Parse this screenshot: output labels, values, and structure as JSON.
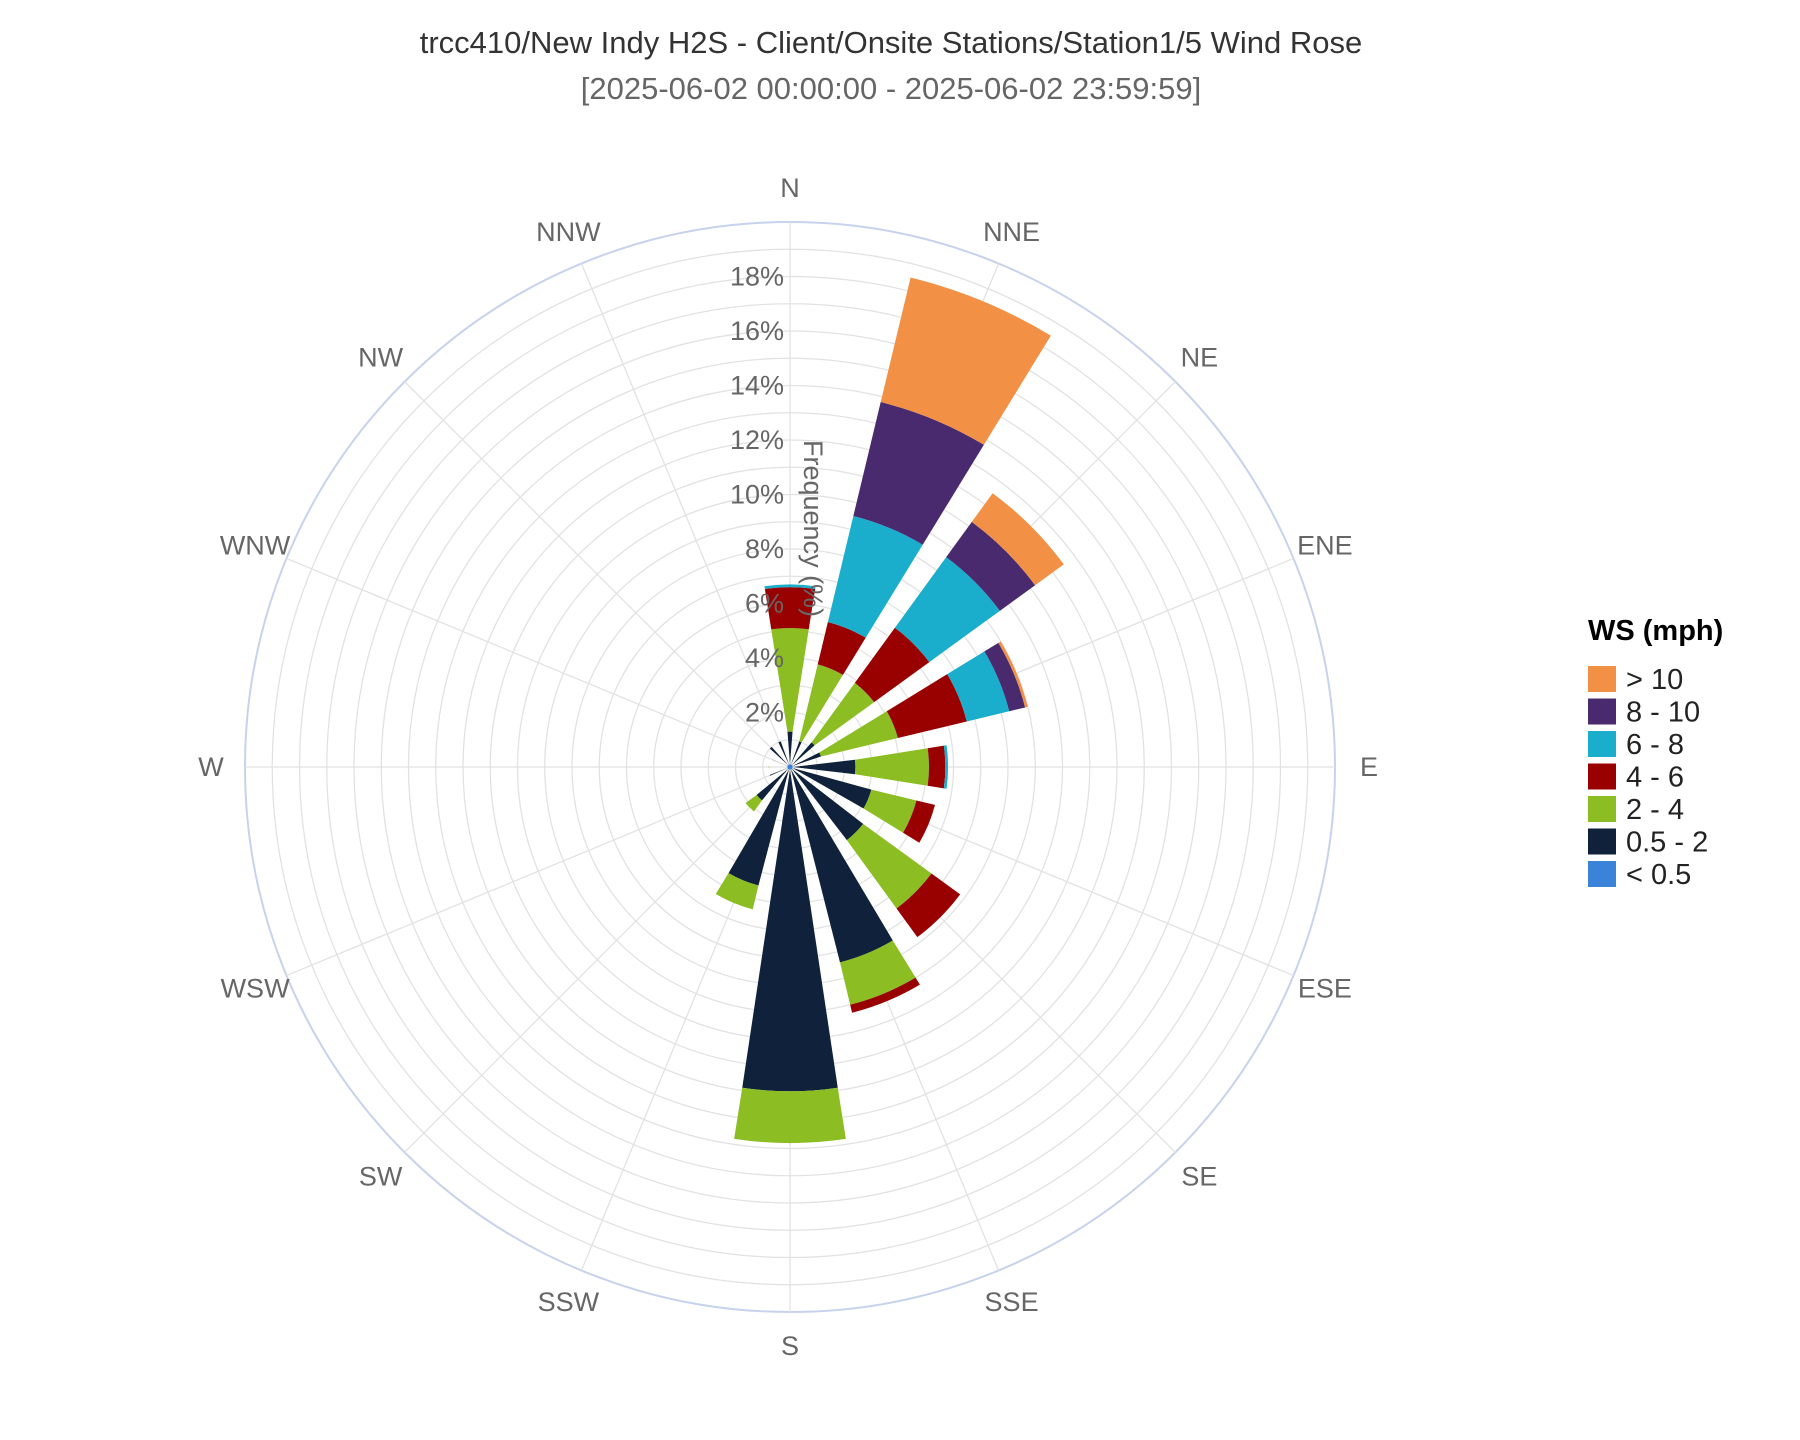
{
  "title": "trcc410/New Indy H2S - Client/Onsite Stations/Station1/5 Wind Rose",
  "subtitle": "[2025-06-02 00:00:00 - 2025-06-02 23:59:59]",
  "chart_data": {
    "type": "wind-rose (stacked polar bar)",
    "radial_axis": {
      "label": "Frequency (%)",
      "range": [
        0,
        20
      ],
      "ticks": [
        2,
        4,
        6,
        8,
        10,
        12,
        14,
        16,
        18
      ],
      "tick_labels": [
        "2%",
        "4%",
        "6%",
        "8%",
        "10%",
        "12%",
        "14%",
        "16%",
        "18%"
      ]
    },
    "directions": [
      "N",
      "NNE",
      "NE",
      "ENE",
      "E",
      "ESE",
      "SE",
      "SSE",
      "S",
      "SSW",
      "SW",
      "WSW",
      "W",
      "WNW",
      "NW",
      "NNW"
    ],
    "legend": {
      "title": "WS (mph)",
      "position": "right",
      "items": [
        "> 10",
        "8 - 10",
        "6 - 8",
        "4 - 6",
        "2 - 4",
        "0.5 - 2",
        "< 0.5"
      ]
    },
    "colors": {
      "< 0.5": "#3b82d9",
      "0.5 - 2": "#10223b",
      "2 - 4": "#8cbd22",
      "4 - 6": "#990000",
      "6 - 8": "#1baecc",
      "8 - 10": "#4a2a6e",
      "> 10": "#f29145"
    },
    "series": [
      {
        "name": "< 0.5",
        "values": [
          0.1,
          0.1,
          0.1,
          0.1,
          0.1,
          0.1,
          0.1,
          0.1,
          0.1,
          0.1,
          0.1,
          0.1,
          0.1,
          0.1,
          0.1,
          0.1
        ]
      },
      {
        "name": "0.5 - 2",
        "values": [
          1.2,
          0.9,
          1.1,
          1.1,
          2.3,
          3.0,
          3.3,
          7.3,
          11.8,
          4.4,
          1.5,
          0.7,
          0.6,
          0.6,
          0.9,
          0.9
        ]
      },
      {
        "name": "2 - 4",
        "values": [
          3.8,
          2.9,
          2.7,
          2.9,
          2.7,
          1.7,
          3.1,
          1.6,
          1.9,
          0.9,
          0.5,
          0.0,
          0.1,
          0.0,
          0.0,
          0.0
        ]
      },
      {
        "name": "4 - 6",
        "values": [
          1.5,
          1.6,
          2.5,
          2.6,
          0.6,
          0.7,
          1.3,
          0.3,
          0.0,
          0.0,
          0.0,
          0.0,
          0.0,
          0.0,
          0.0,
          0.0
        ]
      },
      {
        "name": "6 - 8",
        "values": [
          0.1,
          4.0,
          3.2,
          1.6,
          0.1,
          0.0,
          0.0,
          0.0,
          0.0,
          0.0,
          0.0,
          0.0,
          0.0,
          0.0,
          0.0,
          0.0
        ]
      },
      {
        "name": "8 - 10",
        "values": [
          0.0,
          4.3,
          1.6,
          0.6,
          0.0,
          0.0,
          0.0,
          0.0,
          0.0,
          0.0,
          0.0,
          0.0,
          0.0,
          0.0,
          0.0,
          0.0
        ]
      },
      {
        "name": "> 10",
        "values": [
          0.0,
          4.7,
          1.3,
          0.1,
          0.0,
          0.0,
          0.0,
          0.0,
          0.0,
          0.0,
          0.0,
          0.0,
          0.0,
          0.0,
          0.0,
          0.0
        ]
      }
    ],
    "grid": true
  }
}
